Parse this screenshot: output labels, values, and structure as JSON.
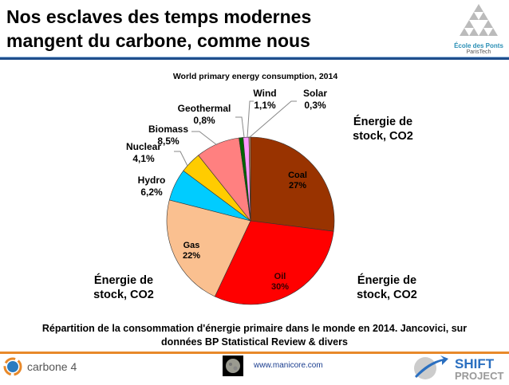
{
  "slide": {
    "title_line1": "Nos esclaves des temps modernes",
    "title_line2": "mangent du carbone, comme nous",
    "stock_label_line1": "Énergie de",
    "stock_label_line2": "stock, CO2",
    "caption_line1": "Répartition de la consommation d'énergie primaire dans le monde en 2014. Jancovici, sur",
    "caption_line2": "données BP Statistical Review & divers",
    "url": "www.manicore.com",
    "logos": {
      "ecole": "École des Ponts",
      "ecole_sub": "ParisTech",
      "carbone4": "carbone 4",
      "shift": "THE SHIFT PROJECT"
    },
    "colors": {
      "rule_top": "#1f4e8c",
      "rule_bottom": "#e8892a"
    }
  },
  "chart_data": {
    "type": "pie",
    "title": "World primary energy consumption, 2014",
    "categories": [
      "Coal",
      "Oil",
      "Gas",
      "Hydro",
      "Nuclear",
      "Biomass",
      "Geothermal",
      "Wind",
      "Solar"
    ],
    "labels": [
      "27%",
      "30%",
      "22%",
      "6,2%",
      "4,1%",
      "8,5%",
      "0,8%",
      "1,1%",
      "0,3%"
    ],
    "values": [
      27,
      30,
      22,
      6.2,
      4.1,
      8.5,
      0.8,
      1.1,
      0.3
    ],
    "colors": [
      "#993300",
      "#ff0000",
      "#fac090",
      "#00ccff",
      "#ffcc00",
      "#ff8080",
      "#006600",
      "#ff99ff",
      "#cc9966"
    ],
    "start": "12 o'clock, clockwise"
  }
}
